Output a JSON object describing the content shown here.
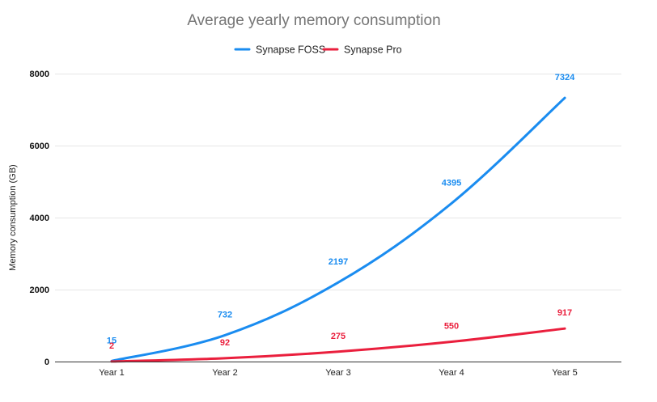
{
  "chart_data": {
    "type": "line",
    "title": "Average yearly memory consumption",
    "xlabel": "",
    "ylabel": "Memory consumption (GB)",
    "categories": [
      "Year 1",
      "Year 2",
      "Year 3",
      "Year 4",
      "Year 5"
    ],
    "ylim": [
      0,
      8000
    ],
    "yticks": [
      0,
      2000,
      4000,
      6000,
      8000
    ],
    "grid": true,
    "legend_position": "top-center",
    "series": [
      {
        "name": "Synapse FOSS",
        "color": "#1a8cf0",
        "values": [
          15,
          732,
          2197,
          4395,
          7324
        ],
        "labels": [
          "15",
          "732",
          "2197",
          "4395",
          "7324"
        ]
      },
      {
        "name": "Synapse Pro",
        "color": "#ea1f3d",
        "values": [
          2,
          92,
          275,
          550,
          917
        ],
        "labels": [
          "2",
          "92",
          "275",
          "550",
          "917"
        ]
      }
    ]
  }
}
